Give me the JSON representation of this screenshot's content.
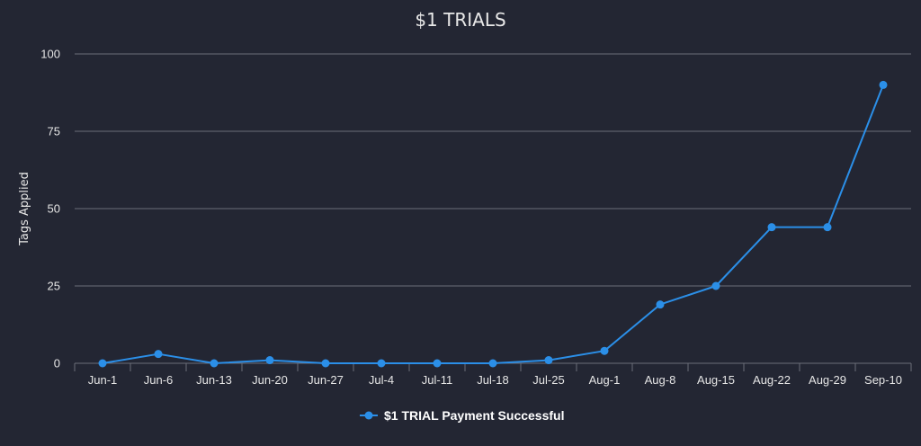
{
  "chart_data": {
    "type": "line",
    "title": "$1 TRIALS",
    "xlabel": "",
    "ylabel": "Tags Applied",
    "ylim": [
      0,
      100
    ],
    "yticks": [
      "0",
      "25",
      "50",
      "75",
      "100"
    ],
    "grid": true,
    "legend_position": "bottom-center",
    "categories": [
      "Jun-1",
      "Jun-6",
      "Jun-13",
      "Jun-20",
      "Jun-27",
      "Jul-4",
      "Jul-11",
      "Jul-18",
      "Jul-25",
      "Aug-1",
      "Aug-8",
      "Aug-15",
      "Aug-22",
      "Aug-29",
      "Sep-10"
    ],
    "series": [
      {
        "name": "$1 TRIAL Payment Successful",
        "color": "#2b8fe8",
        "values": [
          0,
          3,
          0,
          1,
          0,
          0,
          0,
          0,
          1,
          4,
          19,
          25,
          44,
          44,
          90
        ]
      }
    ]
  },
  "colors": {
    "background": "#232633",
    "grid": "#6b6e78",
    "text": "#e6e6e6"
  }
}
